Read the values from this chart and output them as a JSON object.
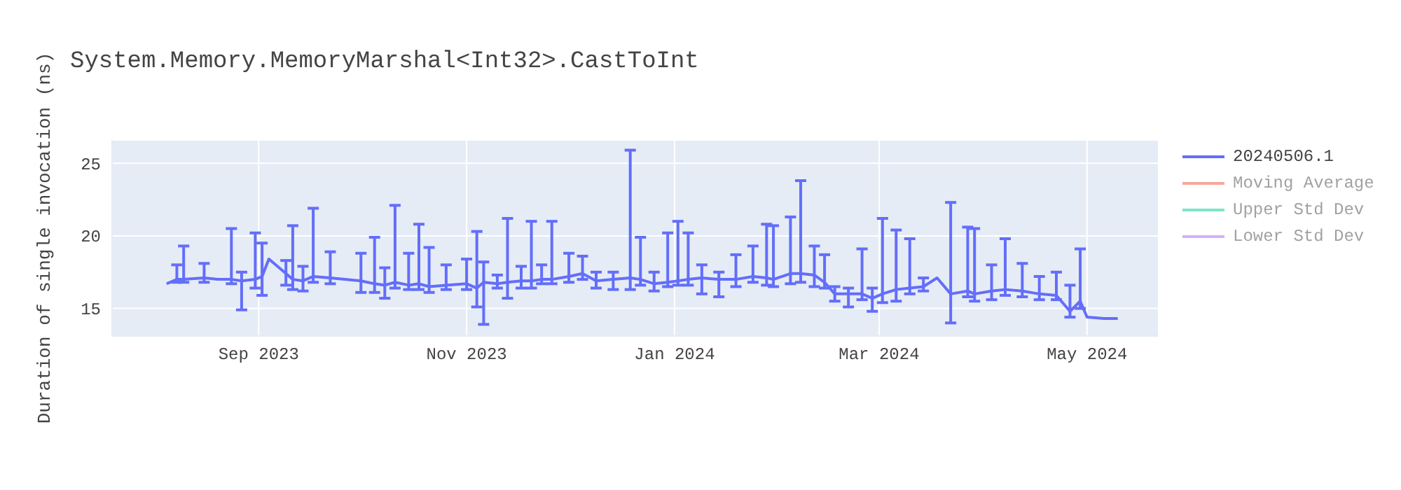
{
  "chart_data": {
    "type": "line",
    "title": "System.Memory.MemoryMarshal<Int32>.CastToInt",
    "ylabel": "Duration of single invocation (ns)",
    "xlim": [
      "2023-07-20",
      "2024-05-22"
    ],
    "xticks": [
      {
        "value": "2023-09-01",
        "label": "Sep 2023"
      },
      {
        "value": "2023-11-01",
        "label": "Nov 2023"
      },
      {
        "value": "2024-01-01",
        "label": "Jan 2024"
      },
      {
        "value": "2024-03-01",
        "label": "Mar 2024"
      },
      {
        "value": "2024-05-01",
        "label": "May 2024"
      }
    ],
    "ylim": [
      13.1,
      26.6
    ],
    "yticks": [
      15,
      20,
      25
    ],
    "grid": true,
    "legend": "top right",
    "series": [
      {
        "name": "20240506.1",
        "color": "#636efa",
        "x": [
          "2023-08-05",
          "2023-08-08",
          "2023-08-10",
          "2023-08-16",
          "2023-08-20",
          "2023-08-24",
          "2023-08-27",
          "2023-08-31",
          "2023-09-02",
          "2023-09-04",
          "2023-09-09",
          "2023-09-11",
          "2023-09-14",
          "2023-09-17",
          "2023-09-22",
          "2023-10-01",
          "2023-10-05",
          "2023-10-08",
          "2023-10-11",
          "2023-10-15",
          "2023-10-18",
          "2023-10-21",
          "2023-10-26",
          "2023-11-01",
          "2023-11-04",
          "2023-11-06",
          "2023-11-10",
          "2023-11-13",
          "2023-11-17",
          "2023-11-20",
          "2023-11-23",
          "2023-11-26",
          "2023-12-01",
          "2023-12-05",
          "2023-12-09",
          "2023-12-14",
          "2023-12-19",
          "2023-12-22",
          "2023-12-26",
          "2023-12-30",
          "2024-01-02",
          "2024-01-05",
          "2024-01-09",
          "2024-01-14",
          "2024-01-19",
          "2024-01-24",
          "2024-01-28",
          "2024-01-30",
          "2024-02-04",
          "2024-02-07",
          "2024-02-11",
          "2024-02-14",
          "2024-02-17",
          "2024-02-21",
          "2024-02-25",
          "2024-02-28",
          "2024-03-02",
          "2024-03-06",
          "2024-03-10",
          "2024-03-14",
          "2024-03-18",
          "2024-03-22",
          "2024-03-27",
          "2024-03-29",
          "2024-04-03",
          "2024-04-07",
          "2024-04-12",
          "2024-04-17",
          "2024-04-22",
          "2024-04-26",
          "2024-04-29",
          "2024-05-01",
          "2024-05-06",
          "2024-05-10"
        ],
        "values": [
          16.7,
          17.0,
          17.0,
          17.1,
          17.0,
          17.0,
          16.9,
          17.0,
          17.2,
          18.4,
          17.4,
          17.0,
          16.9,
          17.2,
          17.1,
          16.9,
          16.7,
          16.6,
          16.8,
          16.6,
          16.7,
          16.5,
          16.6,
          16.7,
          16.4,
          16.8,
          16.7,
          16.8,
          16.9,
          16.9,
          17.0,
          17.0,
          17.2,
          17.4,
          16.9,
          17.0,
          17.1,
          17.0,
          16.7,
          16.8,
          16.9,
          17.0,
          17.1,
          17.0,
          17.0,
          17.2,
          17.1,
          17.0,
          17.4,
          17.4,
          17.3,
          16.8,
          16.0,
          16.0,
          16.0,
          15.7,
          16.0,
          16.3,
          16.4,
          16.5,
          17.1,
          16.0,
          16.2,
          16.0,
          16.2,
          16.3,
          16.2,
          16.0,
          15.9,
          14.8,
          15.5,
          14.4,
          14.3,
          14.3
        ],
        "errors": [
          null,
          [
            16.8,
            18.0
          ],
          [
            16.8,
            19.3
          ],
          [
            16.8,
            18.1
          ],
          null,
          [
            16.7,
            20.5
          ],
          [
            14.9,
            17.5
          ],
          [
            16.4,
            20.2
          ],
          [
            15.9,
            19.5
          ],
          null,
          [
            16.6,
            18.3
          ],
          [
            16.3,
            20.7
          ],
          [
            16.2,
            17.9
          ],
          [
            16.8,
            21.9
          ],
          [
            16.7,
            18.9
          ],
          [
            16.1,
            18.8
          ],
          [
            16.1,
            19.9
          ],
          [
            15.7,
            17.8
          ],
          [
            16.4,
            22.1
          ],
          [
            16.3,
            18.8
          ],
          [
            16.3,
            20.8
          ],
          [
            16.1,
            19.2
          ],
          [
            16.3,
            18.0
          ],
          [
            16.3,
            18.4
          ],
          [
            15.1,
            20.3
          ],
          [
            13.9,
            18.2
          ],
          [
            16.4,
            17.3
          ],
          [
            15.7,
            21.2
          ],
          [
            16.4,
            17.9
          ],
          [
            16.4,
            21.0
          ],
          [
            16.7,
            18.0
          ],
          [
            16.7,
            21.0
          ],
          [
            16.8,
            18.8
          ],
          [
            17.0,
            18.6
          ],
          [
            16.4,
            17.5
          ],
          [
            16.3,
            17.5
          ],
          [
            16.3,
            25.9
          ],
          [
            16.6,
            19.9
          ],
          [
            16.2,
            17.5
          ],
          [
            16.5,
            20.2
          ],
          [
            16.6,
            21.0
          ],
          [
            16.6,
            20.2
          ],
          [
            16.0,
            18.0
          ],
          [
            15.8,
            17.5
          ],
          [
            16.5,
            18.7
          ],
          [
            16.8,
            19.3
          ],
          [
            16.6,
            20.8
          ],
          [
            16.5,
            20.7
          ],
          [
            16.7,
            21.3
          ],
          [
            16.8,
            23.8
          ],
          [
            16.5,
            19.3
          ],
          [
            16.4,
            18.7
          ],
          [
            15.5,
            16.5
          ],
          [
            15.1,
            16.4
          ],
          [
            15.6,
            19.1
          ],
          [
            14.8,
            16.4
          ],
          [
            15.4,
            21.2
          ],
          [
            15.5,
            20.4
          ],
          [
            16.0,
            19.8
          ],
          [
            16.2,
            17.1
          ],
          null,
          [
            14.0,
            22.3
          ],
          [
            15.8,
            20.6
          ],
          [
            15.5,
            20.5
          ],
          [
            15.6,
            18.0
          ],
          [
            15.9,
            19.8
          ],
          [
            15.8,
            18.1
          ],
          [
            15.6,
            17.2
          ],
          [
            15.6,
            17.5
          ],
          [
            14.4,
            16.6
          ],
          [
            15.0,
            19.1
          ],
          null,
          null,
          null
        ]
      },
      {
        "name": "Moving Average",
        "color": "#ef553b"
      },
      {
        "name": "Upper Std Dev",
        "color": "#00cc96"
      },
      {
        "name": "Lower Std Dev",
        "color": "#ab63fa"
      }
    ]
  }
}
